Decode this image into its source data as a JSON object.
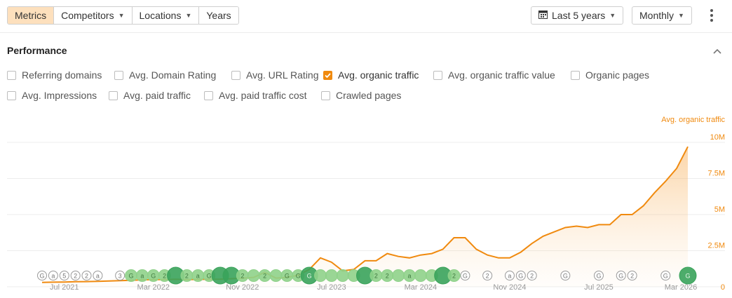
{
  "toolbar": {
    "tabs": [
      {
        "label": "Metrics",
        "active": true
      },
      {
        "label": "Competitors",
        "dropdown": true
      },
      {
        "label": "Locations",
        "dropdown": true
      },
      {
        "label": "Years"
      }
    ],
    "date_range": "Last 5 years",
    "granularity": "Monthly",
    "calendar_icon": "calendar-icon",
    "more_icon": "kebab-icon"
  },
  "performance": {
    "title": "Performance",
    "collapse_icon": "chevron-up-icon",
    "metrics_row1": [
      {
        "label": "Referring domains",
        "checked": false
      },
      {
        "label": "Avg. Domain Rating",
        "checked": false
      },
      {
        "label": "Avg. URL Rating",
        "checked": false
      },
      {
        "label": "Avg. organic traffic",
        "checked": true
      },
      {
        "label": "Avg. organic traffic value",
        "checked": false
      },
      {
        "label": "Organic pages",
        "checked": false
      }
    ],
    "metrics_row2": [
      {
        "label": "Avg. Impressions",
        "checked": false
      },
      {
        "label": "Avg. paid traffic",
        "checked": false
      },
      {
        "label": "Avg. paid traffic cost",
        "checked": false
      },
      {
        "label": "Crawled pages",
        "checked": false
      }
    ]
  },
  "colors": {
    "accent": "#f08a0f",
    "checkbox": "#f08a0f",
    "event_green": "#3aa35b",
    "event_green_light": "#8fd18a"
  },
  "chart_data": {
    "type": "area",
    "series_label": "Avg. organic traffic",
    "y_ticks": [
      "10M",
      "7.5M",
      "5M",
      "2.5M",
      "0"
    ],
    "y_tick_values": [
      10000000,
      7500000,
      5000000,
      2500000,
      0
    ],
    "ylim": [
      0,
      10000000
    ],
    "x_tick_labels": [
      "Jul 2021",
      "Mar 2022",
      "Nov 2022",
      "Jul 2023",
      "Mar 2024",
      "Nov 2024",
      "Jul 2025",
      "Mar 2026"
    ],
    "x_tick_index": [
      2,
      10,
      18,
      26,
      34,
      42,
      50,
      58
    ],
    "values": [
      300000,
      320000,
      330000,
      350000,
      360000,
      380000,
      400000,
      420000,
      450000,
      480000,
      500000,
      500000,
      520000,
      500000,
      510000,
      520000,
      530000,
      560000,
      600000,
      650000,
      1000000,
      600000,
      650000,
      800000,
      1200000,
      2000000,
      1700000,
      1100000,
      1200000,
      1800000,
      1800000,
      2300000,
      2100000,
      2000000,
      2200000,
      2300000,
      2600000,
      3400000,
      3400000,
      2600000,
      2200000,
      2000000,
      2000000,
      2400000,
      3000000,
      3500000,
      3800000,
      4100000,
      4200000,
      4100000,
      4300000,
      4300000,
      5000000,
      5000000,
      5600000,
      6500000,
      7300000,
      8200000,
      9700000
    ],
    "events": [
      {
        "i": 0,
        "t": "G",
        "k": "outline"
      },
      {
        "i": 1,
        "t": "a",
        "k": "outline"
      },
      {
        "i": 2,
        "t": "5",
        "k": "outline"
      },
      {
        "i": 3,
        "t": "2",
        "k": "outline"
      },
      {
        "i": 4,
        "t": "2",
        "k": "outline"
      },
      {
        "i": 5,
        "t": "a",
        "k": "outline"
      },
      {
        "i": 7,
        "t": "3",
        "k": "outline"
      },
      {
        "i": 8,
        "t": "G",
        "k": "light"
      },
      {
        "i": 9,
        "t": "a",
        "k": "light"
      },
      {
        "i": 10,
        "t": "G",
        "k": "light"
      },
      {
        "i": 11,
        "t": "2",
        "k": "light"
      },
      {
        "i": 12,
        "t": "",
        "k": "dark"
      },
      {
        "i": 13,
        "t": "2",
        "k": "light"
      },
      {
        "i": 14,
        "t": "a",
        "k": "light"
      },
      {
        "i": 15,
        "t": "G",
        "k": "light"
      },
      {
        "i": 16,
        "t": "",
        "k": "dark"
      },
      {
        "i": 17,
        "t": "",
        "k": "dark"
      },
      {
        "i": 18,
        "t": "2",
        "k": "light"
      },
      {
        "i": 19,
        "t": "",
        "k": "light"
      },
      {
        "i": 20,
        "t": "2",
        "k": "light"
      },
      {
        "i": 21,
        "t": "",
        "k": "light"
      },
      {
        "i": 22,
        "t": "G",
        "k": "light"
      },
      {
        "i": 23,
        "t": "G",
        "k": "light"
      },
      {
        "i": 24,
        "t": "G",
        "k": "dark"
      },
      {
        "i": 25,
        "t": "",
        "k": "light"
      },
      {
        "i": 26,
        "t": "",
        "k": "light"
      },
      {
        "i": 27,
        "t": "",
        "k": "light"
      },
      {
        "i": 28,
        "t": "",
        "k": "light"
      },
      {
        "i": 29,
        "t": "",
        "k": "dark"
      },
      {
        "i": 30,
        "t": "2",
        "k": "light"
      },
      {
        "i": 31,
        "t": "2",
        "k": "light"
      },
      {
        "i": 32,
        "t": "",
        "k": "light"
      },
      {
        "i": 33,
        "t": "a",
        "k": "light"
      },
      {
        "i": 34,
        "t": "",
        "k": "light"
      },
      {
        "i": 35,
        "t": "",
        "k": "light"
      },
      {
        "i": 36,
        "t": "",
        "k": "dark"
      },
      {
        "i": 37,
        "t": "2",
        "k": "light"
      },
      {
        "i": 38,
        "t": "G",
        "k": "outline"
      },
      {
        "i": 40,
        "t": "2",
        "k": "outline"
      },
      {
        "i": 42,
        "t": "a",
        "k": "outline"
      },
      {
        "i": 43,
        "t": "G",
        "k": "outline"
      },
      {
        "i": 44,
        "t": "2",
        "k": "outline"
      },
      {
        "i": 47,
        "t": "G",
        "k": "outline"
      },
      {
        "i": 50,
        "t": "G",
        "k": "outline"
      },
      {
        "i": 52,
        "t": "G",
        "k": "outline"
      },
      {
        "i": 53,
        "t": "2",
        "k": "outline"
      },
      {
        "i": 56,
        "t": "G",
        "k": "outline"
      },
      {
        "i": 58,
        "t": "G",
        "k": "dark"
      }
    ]
  }
}
